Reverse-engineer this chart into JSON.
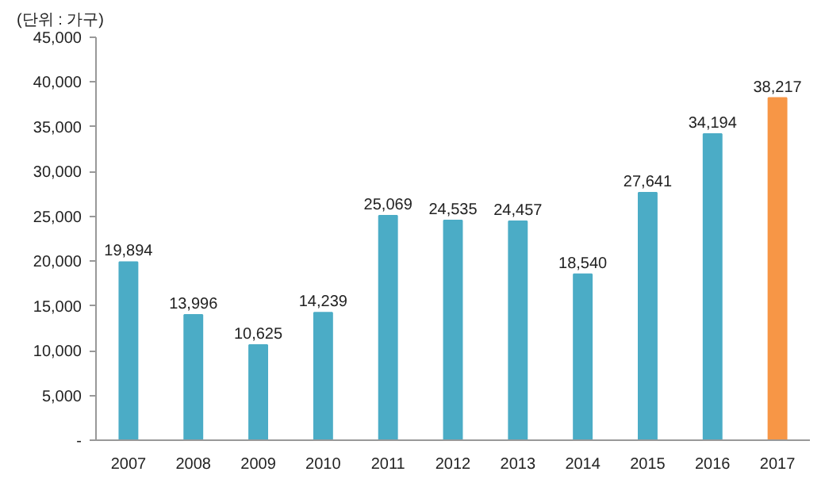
{
  "chart_data": {
    "type": "bar",
    "annotations": [
      "(단위 : 가구)"
    ],
    "categories": [
      "2007",
      "2008",
      "2009",
      "2010",
      "2011",
      "2012",
      "2013",
      "2014",
      "2015",
      "2016",
      "2017"
    ],
    "values": [
      19894,
      13996,
      10625,
      14239,
      25069,
      24535,
      24457,
      18540,
      27641,
      34194,
      38217
    ],
    "colors": [
      "#4bacc6",
      "#4bacc6",
      "#4bacc6",
      "#4bacc6",
      "#4bacc6",
      "#4bacc6",
      "#4bacc6",
      "#4bacc6",
      "#4bacc6",
      "#4bacc6",
      "#f79646"
    ],
    "ylim": [
      0,
      45000
    ],
    "yticks": [
      {
        "value": 0,
        "label": "-"
      },
      {
        "value": 5000,
        "label": "5,000"
      },
      {
        "value": 10000,
        "label": "10,000"
      },
      {
        "value": 15000,
        "label": "15,000"
      },
      {
        "value": 20000,
        "label": "20,000"
      },
      {
        "value": 25000,
        "label": "25,000"
      },
      {
        "value": 30000,
        "label": "30,000"
      },
      {
        "value": 35000,
        "label": "35,000"
      },
      {
        "value": 40000,
        "label": "40,000"
      },
      {
        "value": 45000,
        "label": "45,000"
      }
    ],
    "value_labels": [
      "19,894",
      "13,996",
      "10,625",
      "14,239",
      "25,069",
      "24,535",
      "24,457",
      "18,540",
      "27,641",
      "34,194",
      "38,217"
    ],
    "grid": false
  }
}
